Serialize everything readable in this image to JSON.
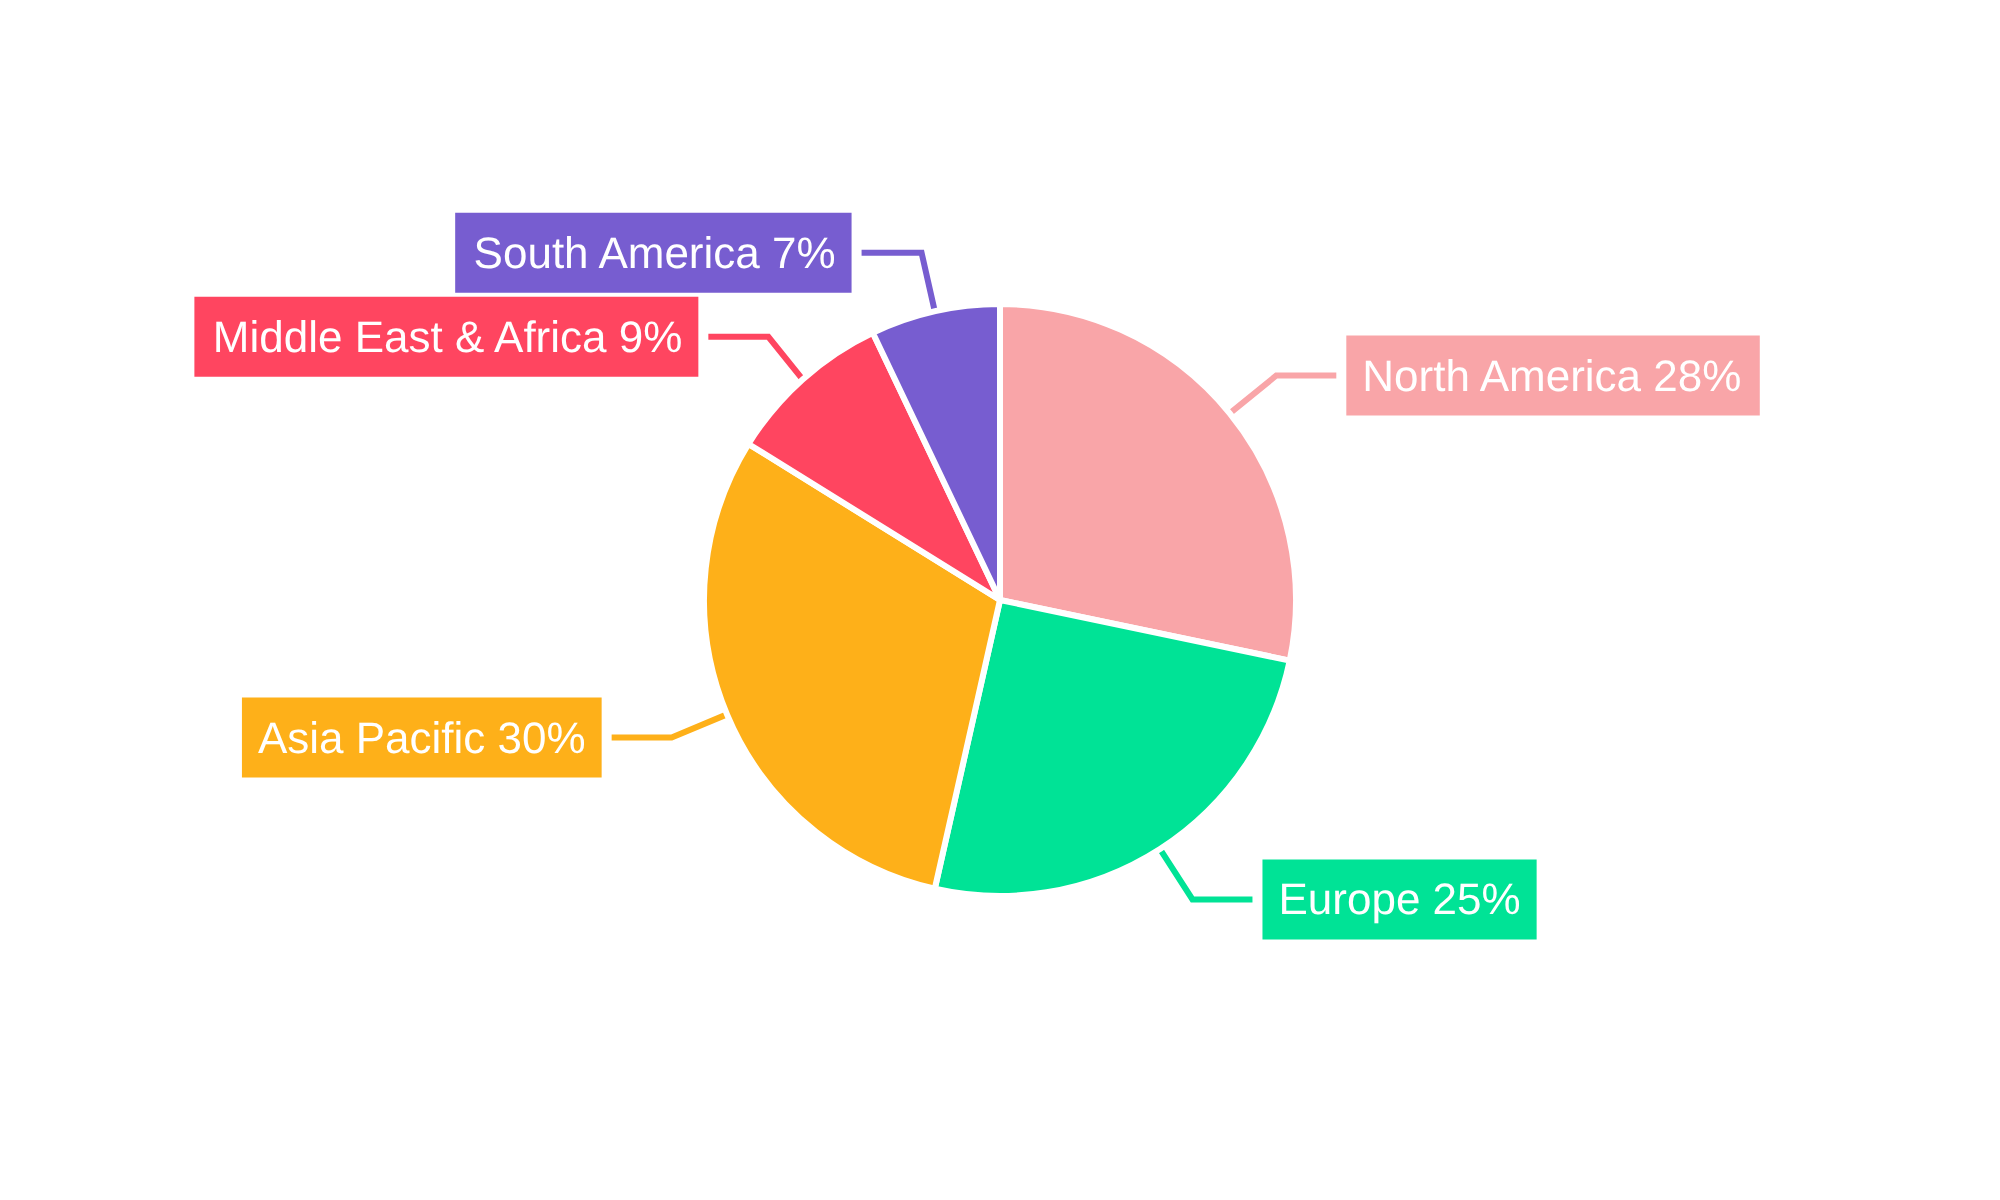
{
  "chart_data": {
    "type": "pie",
    "categories": [
      "North America",
      "Europe",
      "Asia Pacific",
      "Middle East & Africa",
      "South America"
    ],
    "values": [
      28,
      25,
      30,
      9,
      7
    ],
    "colors": [
      "#f9a5a8",
      "#00e396",
      "#feb019",
      "#ff4560",
      "#775dd0"
    ],
    "value_labels": [
      "28%",
      "25%",
      "30%",
      "9%",
      "7%"
    ]
  }
}
